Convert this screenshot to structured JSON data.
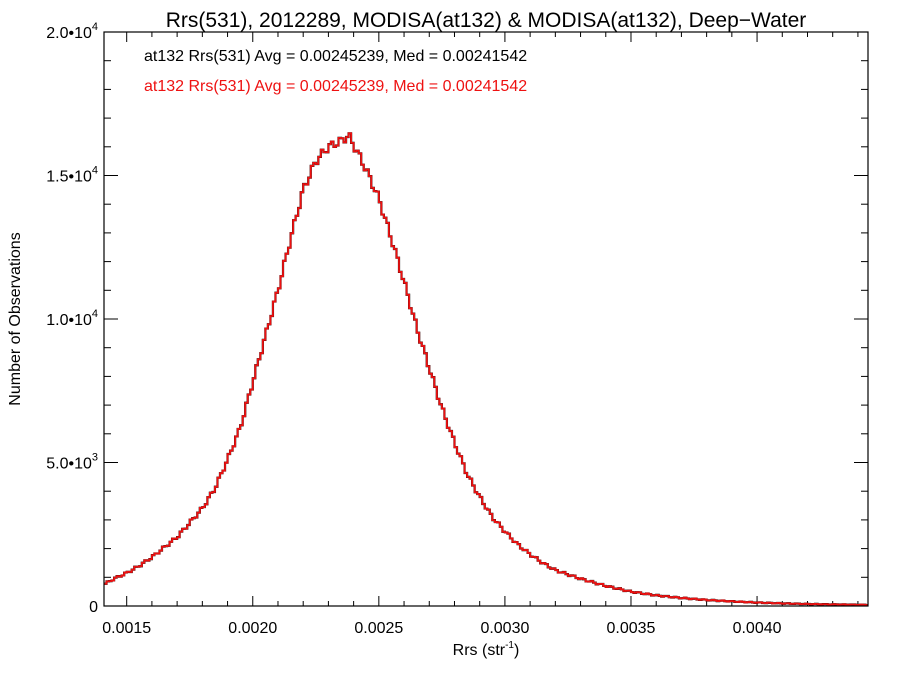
{
  "chart_data": {
    "type": "line",
    "style": "step-histogram",
    "title": "Rrs(531), 2012289, MODISA(at132) & MODISA(at132), Deep−Water",
    "xlabel_main": "Rrs (str",
    "xlabel_sup": "-1",
    "xlabel_close": ")",
    "ylabel": "Number of Observations",
    "xlim": [
      0.00141,
      0.00444
    ],
    "ylim": [
      0,
      20000
    ],
    "x_ticks": [
      {
        "value": 0.0015,
        "label": "0.0015"
      },
      {
        "value": 0.002,
        "label": "0.0020"
      },
      {
        "value": 0.0025,
        "label": "0.0025"
      },
      {
        "value": 0.003,
        "label": "0.0030"
      },
      {
        "value": 0.0035,
        "label": "0.0035"
      },
      {
        "value": 0.004,
        "label": "0.0040"
      }
    ],
    "y_ticks": [
      {
        "value": 0,
        "mant": "0",
        "exp": ""
      },
      {
        "value": 5000,
        "mant": "5.0•10",
        "exp": "3"
      },
      {
        "value": 10000,
        "mant": "1.0•10",
        "exp": "4"
      },
      {
        "value": 15000,
        "mant": "1.5•10",
        "exp": "4"
      },
      {
        "value": 20000,
        "mant": "2.0•10",
        "exp": "4"
      }
    ],
    "annotations": [
      {
        "text": "at132 Rrs(531) Avg = 0.00245239, Med = 0.00241542",
        "color": "#000000"
      },
      {
        "text": "at132 Rrs(531) Avg = 0.00245239, Med = 0.00241542",
        "color": "#ee1111"
      }
    ],
    "series": [
      {
        "color_top": "#000000",
        "color": "#ee1111",
        "x": [
          0.00141,
          0.00145,
          0.0015,
          0.00155,
          0.0016,
          0.00165,
          0.0017,
          0.00175,
          0.0018,
          0.00185,
          0.0019,
          0.00195,
          0.002,
          0.00205,
          0.0021,
          0.00215,
          0.0022,
          0.00225,
          0.0023,
          0.00235,
          0.00238,
          0.00241,
          0.00245,
          0.0025,
          0.00255,
          0.0026,
          0.00265,
          0.0027,
          0.00275,
          0.0028,
          0.00285,
          0.0029,
          0.00295,
          0.003,
          0.00305,
          0.0031,
          0.00315,
          0.0032,
          0.0033,
          0.0034,
          0.0035,
          0.0036,
          0.0037,
          0.0038,
          0.0039,
          0.004,
          0.0041,
          0.0042,
          0.0043,
          0.00444
        ],
        "values": [
          750,
          950,
          1150,
          1400,
          1700,
          2050,
          2400,
          2900,
          3400,
          4100,
          5100,
          6200,
          7800,
          9400,
          11000,
          12800,
          14500,
          15500,
          16000,
          16200,
          16400,
          15900,
          15200,
          14200,
          12800,
          11300,
          9700,
          8300,
          6900,
          5700,
          4600,
          3800,
          3100,
          2600,
          2150,
          1800,
          1500,
          1250,
          950,
          700,
          500,
          370,
          280,
          210,
          160,
          120,
          90,
          70,
          55,
          40
        ]
      }
    ]
  }
}
